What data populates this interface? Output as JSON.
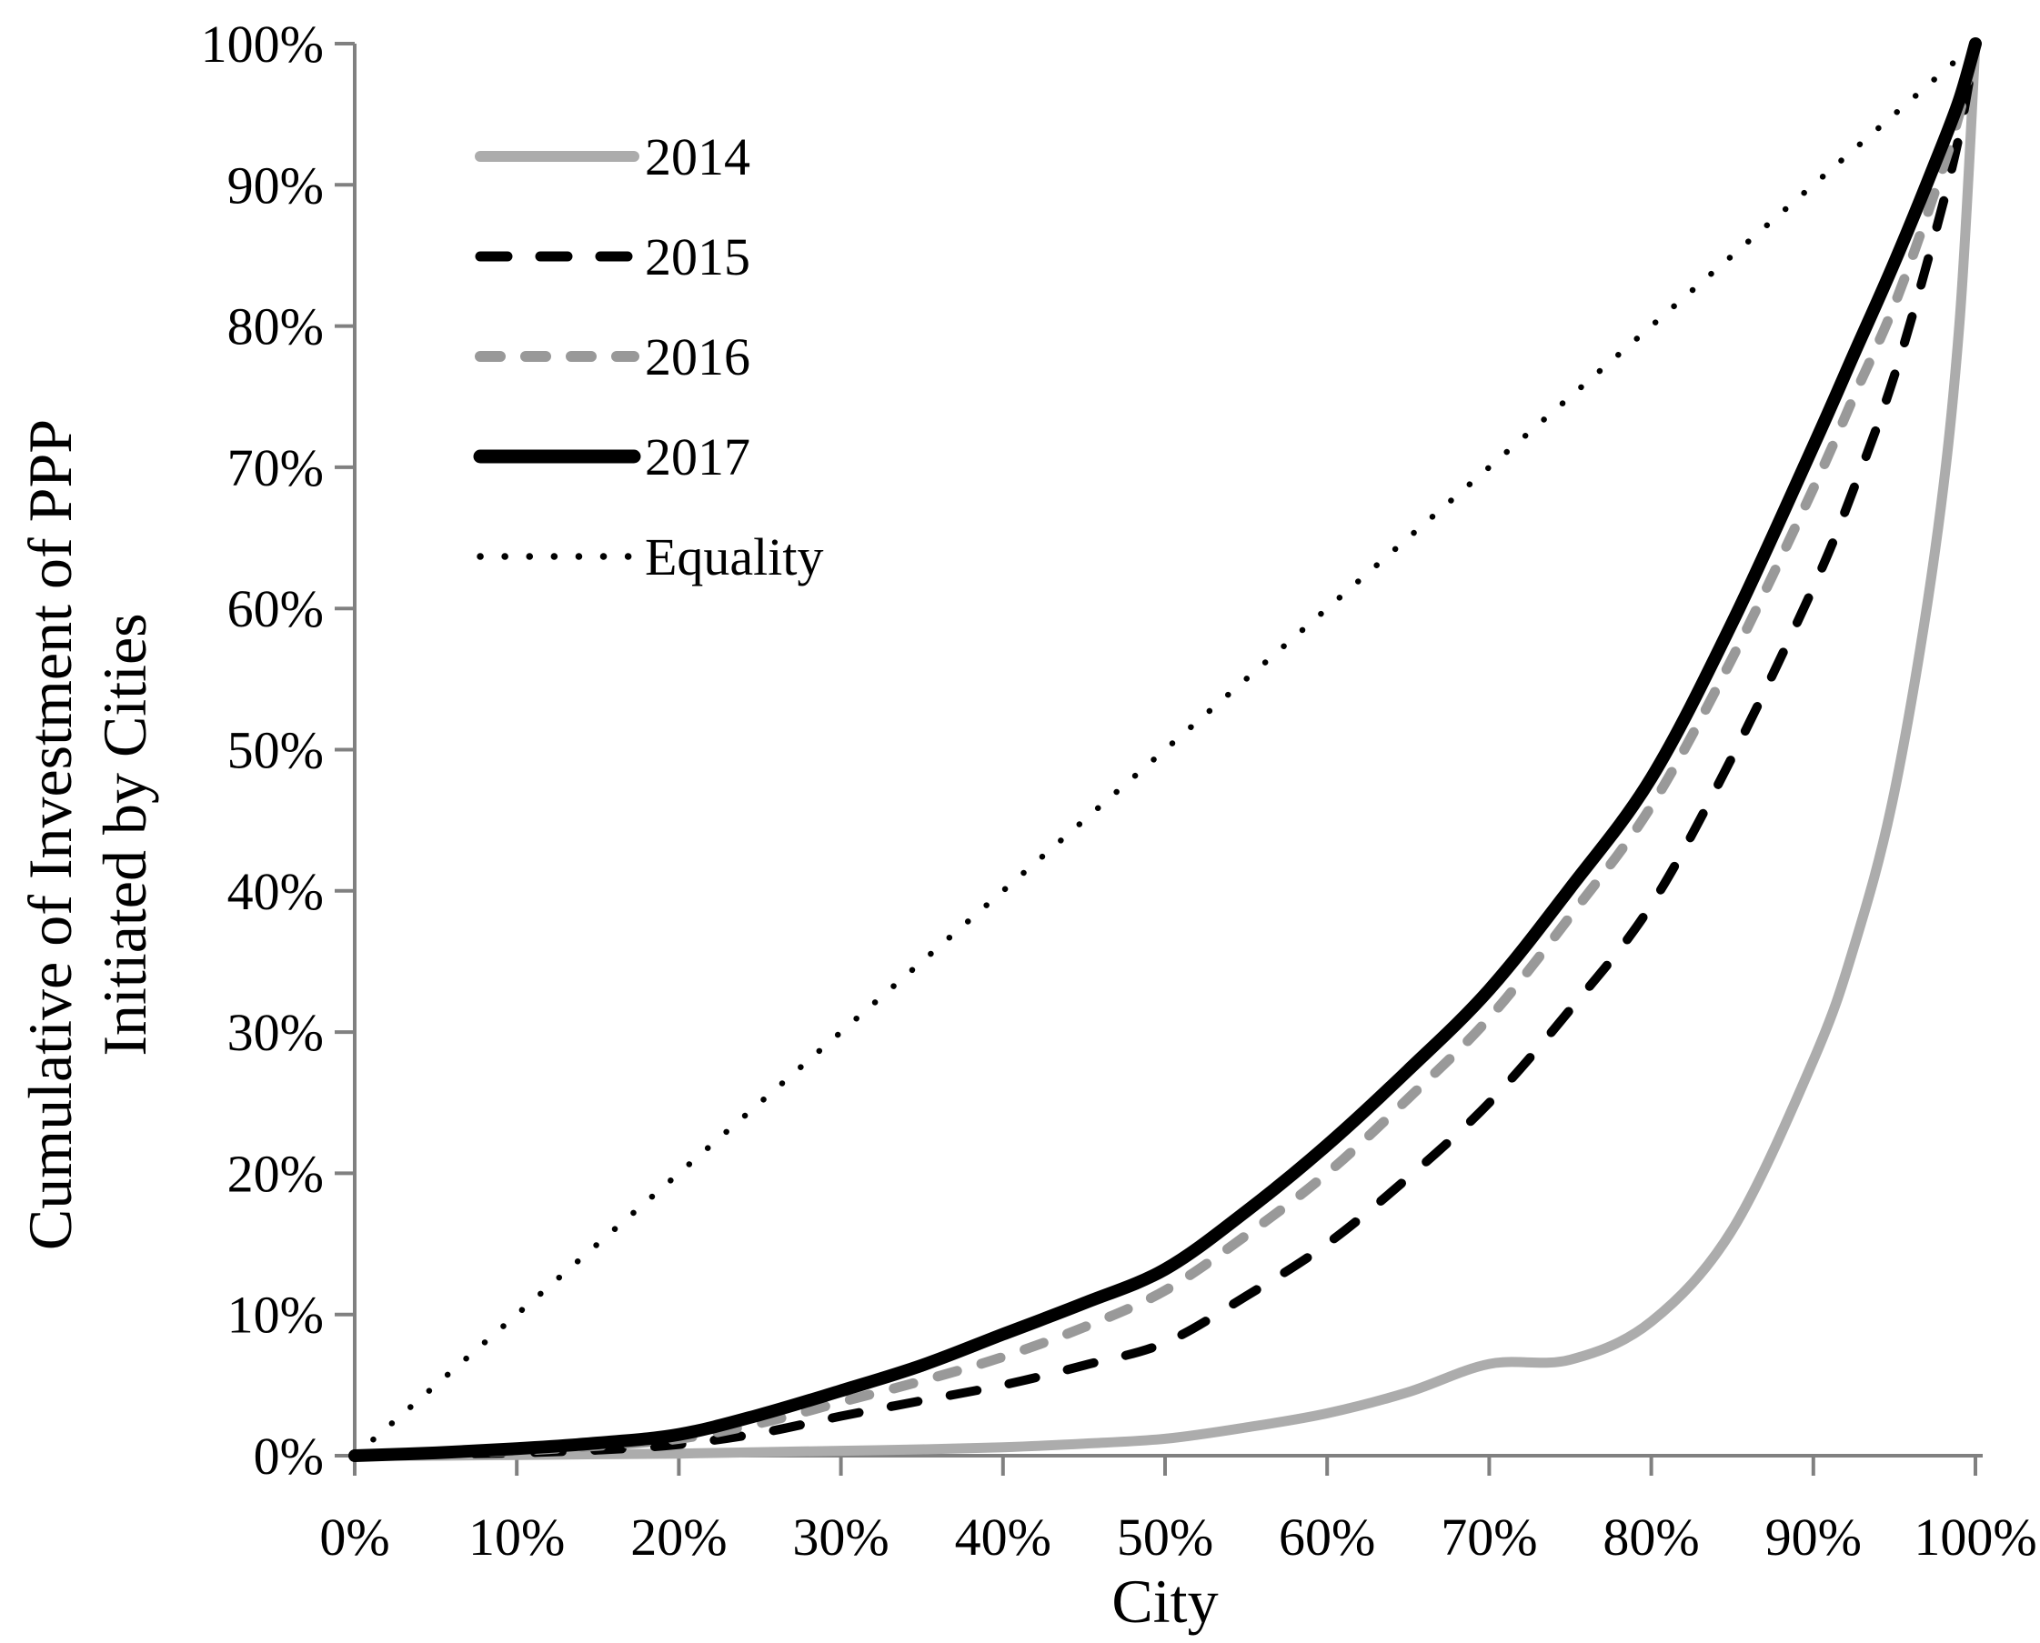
{
  "chart_data": {
    "type": "line",
    "title": "",
    "xlabel": "City",
    "ylabel": "Cumulative of Investment of PPP Initiated by Cities",
    "ylabel_lines": [
      "Cumulative of Investment of PPP",
      "Initiated by Cities"
    ],
    "x_tick_labels": [
      "0%",
      "10%",
      "20%",
      "30%",
      "40%",
      "50%",
      "60%",
      "70%",
      "80%",
      "90%",
      "100%"
    ],
    "y_tick_labels": [
      "0%",
      "10%",
      "20%",
      "30%",
      "40%",
      "50%",
      "60%",
      "70%",
      "80%",
      "90%",
      "100%"
    ],
    "xlim": [
      0,
      100
    ],
    "ylim": [
      0,
      100
    ],
    "grid": false,
    "legend_position": "upper-left-inside",
    "axis_color": "#808080",
    "x": [
      0,
      5,
      10,
      15,
      20,
      25,
      30,
      35,
      40,
      45,
      50,
      55,
      60,
      65,
      70,
      75,
      80,
      85,
      90,
      92.5,
      95,
      97.5,
      99,
      100
    ],
    "series": [
      {
        "name": "2014",
        "color": "#ACACAC",
        "style": "solid",
        "width": 11,
        "values": [
          0,
          0,
          0.05,
          0.1,
          0.15,
          0.25,
          0.35,
          0.45,
          0.6,
          0.85,
          1.2,
          2,
          3,
          4.5,
          6.5,
          6.8,
          9.5,
          16,
          28,
          36,
          47,
          64,
          80,
          100
        ]
      },
      {
        "name": "2015",
        "color": "#000000",
        "style": "dashed",
        "width": 10,
        "values": [
          0,
          0.1,
          0.2,
          0.4,
          0.8,
          1.6,
          2.8,
          3.9,
          5,
          6.4,
          8,
          11.3,
          15,
          19.7,
          25,
          31.6,
          39,
          49.5,
          61.5,
          68.5,
          76.5,
          86.5,
          93.5,
          100
        ]
      },
      {
        "name": "2016",
        "color": "#999999",
        "style": "dashed2",
        "width": 11,
        "values": [
          0,
          0.15,
          0.35,
          0.7,
          1.2,
          2.3,
          3.8,
          5.3,
          7,
          9.1,
          11.7,
          15.6,
          20,
          25.3,
          31,
          38.2,
          46,
          56.5,
          68.5,
          75,
          81.5,
          89.5,
          95,
          100
        ]
      },
      {
        "name": "2017",
        "color": "#000000",
        "style": "solid",
        "width": 14,
        "values": [
          0,
          0.2,
          0.5,
          0.9,
          1.5,
          2.9,
          4.6,
          6.4,
          8.6,
          10.8,
          13.2,
          17.3,
          22,
          27.3,
          33,
          40.2,
          48,
          59,
          71.5,
          78,
          84.5,
          91.5,
          96,
          100
        ]
      },
      {
        "name": "Equality",
        "color": "#000000",
        "style": "dotted",
        "width": 6.5,
        "values": [
          0,
          5,
          10,
          15,
          20,
          25,
          30,
          35,
          40,
          45,
          50,
          55,
          60,
          65,
          70,
          75,
          80,
          85,
          90,
          92.5,
          95,
          97.5,
          99,
          100
        ]
      }
    ]
  }
}
